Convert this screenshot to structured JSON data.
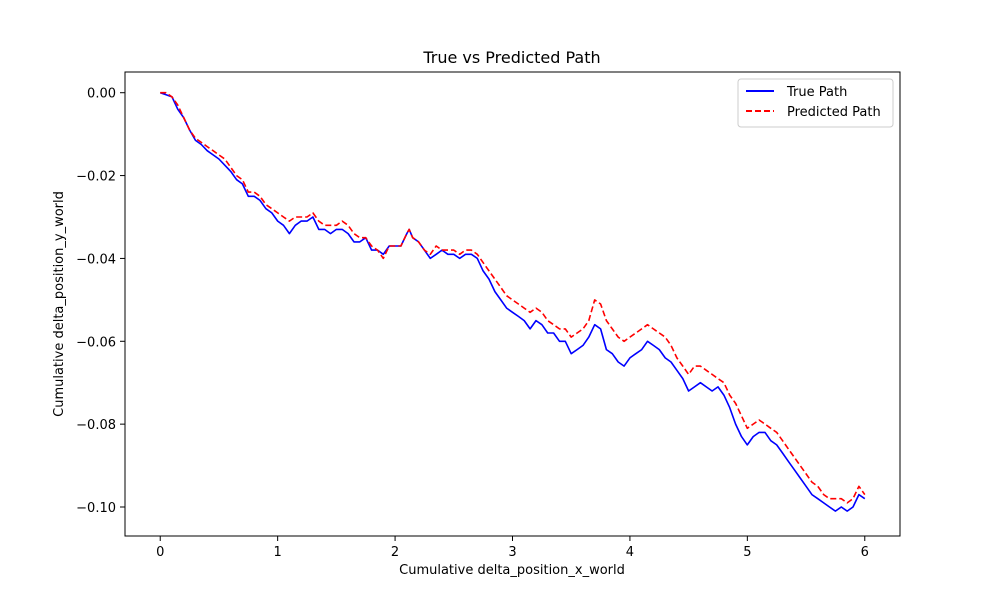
{
  "chart_data": {
    "type": "line",
    "title": "True vs Predicted Path",
    "xlabel": "Cumulative delta_position_x_world",
    "ylabel": "Cumulative delta_position_y_world",
    "xlim": [
      -0.3,
      6.3
    ],
    "ylim": [
      -0.107,
      0.005
    ],
    "x_ticks": [
      0,
      1,
      2,
      3,
      4,
      5,
      6
    ],
    "x_tick_labels": [
      "0",
      "1",
      "2",
      "3",
      "4",
      "5",
      "6"
    ],
    "y_ticks": [
      0.0,
      -0.02,
      -0.04,
      -0.06,
      -0.08,
      -0.1
    ],
    "y_tick_labels": [
      "0.00",
      "−0.02",
      "−0.04",
      "−0.06",
      "−0.08",
      "−0.10"
    ],
    "grid": false,
    "legend_position": "upper-right",
    "series": [
      {
        "name": "True Path",
        "color": "#0000ff",
        "dash": "solid",
        "points": [
          [
            0.0,
            0.0
          ],
          [
            0.05,
            -0.0005
          ],
          [
            0.1,
            -0.001
          ],
          [
            0.15,
            -0.004
          ],
          [
            0.2,
            -0.006
          ],
          [
            0.25,
            -0.009
          ],
          [
            0.3,
            -0.0115
          ],
          [
            0.35,
            -0.0125
          ],
          [
            0.4,
            -0.014
          ],
          [
            0.45,
            -0.015
          ],
          [
            0.5,
            -0.016
          ],
          [
            0.55,
            -0.0175
          ],
          [
            0.6,
            -0.019
          ],
          [
            0.65,
            -0.021
          ],
          [
            0.7,
            -0.022
          ],
          [
            0.75,
            -0.025
          ],
          [
            0.8,
            -0.025
          ],
          [
            0.85,
            -0.026
          ],
          [
            0.9,
            -0.028
          ],
          [
            0.95,
            -0.029
          ],
          [
            1.0,
            -0.031
          ],
          [
            1.05,
            -0.032
          ],
          [
            1.1,
            -0.034
          ],
          [
            1.15,
            -0.032
          ],
          [
            1.2,
            -0.031
          ],
          [
            1.25,
            -0.031
          ],
          [
            1.3,
            -0.03
          ],
          [
            1.35,
            -0.033
          ],
          [
            1.4,
            -0.033
          ],
          [
            1.45,
            -0.034
          ],
          [
            1.5,
            -0.033
          ],
          [
            1.55,
            -0.033
          ],
          [
            1.6,
            -0.034
          ],
          [
            1.65,
            -0.036
          ],
          [
            1.7,
            -0.036
          ],
          [
            1.75,
            -0.035
          ],
          [
            1.8,
            -0.038
          ],
          [
            1.85,
            -0.038
          ],
          [
            1.9,
            -0.039
          ],
          [
            1.95,
            -0.037
          ],
          [
            2.0,
            -0.037
          ],
          [
            2.05,
            -0.037
          ],
          [
            2.1,
            -0.034
          ],
          [
            2.12,
            -0.033
          ],
          [
            2.15,
            -0.035
          ],
          [
            2.2,
            -0.036
          ],
          [
            2.25,
            -0.038
          ],
          [
            2.3,
            -0.04
          ],
          [
            2.35,
            -0.039
          ],
          [
            2.4,
            -0.038
          ],
          [
            2.45,
            -0.039
          ],
          [
            2.5,
            -0.039
          ],
          [
            2.55,
            -0.04
          ],
          [
            2.6,
            -0.039
          ],
          [
            2.65,
            -0.039
          ],
          [
            2.7,
            -0.04
          ],
          [
            2.75,
            -0.043
          ],
          [
            2.8,
            -0.045
          ],
          [
            2.85,
            -0.048
          ],
          [
            2.9,
            -0.05
          ],
          [
            2.95,
            -0.052
          ],
          [
            3.0,
            -0.053
          ],
          [
            3.05,
            -0.054
          ],
          [
            3.1,
            -0.055
          ],
          [
            3.15,
            -0.057
          ],
          [
            3.2,
            -0.055
          ],
          [
            3.25,
            -0.056
          ],
          [
            3.3,
            -0.058
          ],
          [
            3.35,
            -0.058
          ],
          [
            3.4,
            -0.06
          ],
          [
            3.45,
            -0.06
          ],
          [
            3.5,
            -0.063
          ],
          [
            3.55,
            -0.062
          ],
          [
            3.6,
            -0.061
          ],
          [
            3.65,
            -0.059
          ],
          [
            3.7,
            -0.056
          ],
          [
            3.75,
            -0.057
          ],
          [
            3.8,
            -0.062
          ],
          [
            3.85,
            -0.063
          ],
          [
            3.9,
            -0.065
          ],
          [
            3.95,
            -0.066
          ],
          [
            4.0,
            -0.064
          ],
          [
            4.05,
            -0.063
          ],
          [
            4.1,
            -0.062
          ],
          [
            4.15,
            -0.06
          ],
          [
            4.2,
            -0.061
          ],
          [
            4.25,
            -0.062
          ],
          [
            4.3,
            -0.064
          ],
          [
            4.35,
            -0.065
          ],
          [
            4.4,
            -0.067
          ],
          [
            4.45,
            -0.069
          ],
          [
            4.5,
            -0.072
          ],
          [
            4.55,
            -0.071
          ],
          [
            4.6,
            -0.07
          ],
          [
            4.65,
            -0.071
          ],
          [
            4.7,
            -0.072
          ],
          [
            4.75,
            -0.071
          ],
          [
            4.8,
            -0.073
          ],
          [
            4.85,
            -0.076
          ],
          [
            4.9,
            -0.08
          ],
          [
            4.95,
            -0.083
          ],
          [
            5.0,
            -0.085
          ],
          [
            5.05,
            -0.083
          ],
          [
            5.1,
            -0.082
          ],
          [
            5.15,
            -0.082
          ],
          [
            5.2,
            -0.084
          ],
          [
            5.25,
            -0.085
          ],
          [
            5.3,
            -0.087
          ],
          [
            5.35,
            -0.089
          ],
          [
            5.4,
            -0.091
          ],
          [
            5.45,
            -0.093
          ],
          [
            5.5,
            -0.095
          ],
          [
            5.55,
            -0.097
          ],
          [
            5.6,
            -0.098
          ],
          [
            5.65,
            -0.099
          ],
          [
            5.7,
            -0.1
          ],
          [
            5.75,
            -0.101
          ],
          [
            5.8,
            -0.1
          ],
          [
            5.85,
            -0.101
          ],
          [
            5.9,
            -0.1
          ],
          [
            5.95,
            -0.097
          ],
          [
            6.0,
            -0.098
          ]
        ]
      },
      {
        "name": "Predicted Path",
        "color": "#ff0000",
        "dash": "dashed",
        "points": [
          [
            0.0,
            0.0
          ],
          [
            0.05,
            0.0
          ],
          [
            0.1,
            -0.001
          ],
          [
            0.15,
            -0.003
          ],
          [
            0.2,
            -0.006
          ],
          [
            0.25,
            -0.009
          ],
          [
            0.3,
            -0.011
          ],
          [
            0.35,
            -0.012
          ],
          [
            0.4,
            -0.013
          ],
          [
            0.45,
            -0.014
          ],
          [
            0.5,
            -0.015
          ],
          [
            0.55,
            -0.016
          ],
          [
            0.6,
            -0.018
          ],
          [
            0.65,
            -0.02
          ],
          [
            0.7,
            -0.021
          ],
          [
            0.75,
            -0.024
          ],
          [
            0.8,
            -0.024
          ],
          [
            0.85,
            -0.025
          ],
          [
            0.9,
            -0.027
          ],
          [
            0.95,
            -0.028
          ],
          [
            1.0,
            -0.029
          ],
          [
            1.05,
            -0.03
          ],
          [
            1.1,
            -0.031
          ],
          [
            1.15,
            -0.03
          ],
          [
            1.2,
            -0.03
          ],
          [
            1.25,
            -0.03
          ],
          [
            1.3,
            -0.029
          ],
          [
            1.35,
            -0.031
          ],
          [
            1.4,
            -0.032
          ],
          [
            1.45,
            -0.032
          ],
          [
            1.5,
            -0.032
          ],
          [
            1.55,
            -0.031
          ],
          [
            1.6,
            -0.032
          ],
          [
            1.65,
            -0.034
          ],
          [
            1.7,
            -0.035
          ],
          [
            1.75,
            -0.035
          ],
          [
            1.8,
            -0.037
          ],
          [
            1.85,
            -0.038
          ],
          [
            1.9,
            -0.04
          ],
          [
            1.95,
            -0.037
          ],
          [
            2.0,
            -0.037
          ],
          [
            2.05,
            -0.037
          ],
          [
            2.1,
            -0.034
          ],
          [
            2.12,
            -0.033
          ],
          [
            2.15,
            -0.035
          ],
          [
            2.2,
            -0.036
          ],
          [
            2.25,
            -0.038
          ],
          [
            2.3,
            -0.039
          ],
          [
            2.35,
            -0.037
          ],
          [
            2.4,
            -0.038
          ],
          [
            2.45,
            -0.038
          ],
          [
            2.5,
            -0.038
          ],
          [
            2.55,
            -0.039
          ],
          [
            2.6,
            -0.038
          ],
          [
            2.65,
            -0.038
          ],
          [
            2.7,
            -0.039
          ],
          [
            2.75,
            -0.041
          ],
          [
            2.8,
            -0.043
          ],
          [
            2.85,
            -0.045
          ],
          [
            2.9,
            -0.047
          ],
          [
            2.95,
            -0.049
          ],
          [
            3.0,
            -0.05
          ],
          [
            3.05,
            -0.051
          ],
          [
            3.1,
            -0.052
          ],
          [
            3.15,
            -0.053
          ],
          [
            3.2,
            -0.052
          ],
          [
            3.25,
            -0.053
          ],
          [
            3.3,
            -0.055
          ],
          [
            3.35,
            -0.056
          ],
          [
            3.4,
            -0.057
          ],
          [
            3.45,
            -0.057
          ],
          [
            3.5,
            -0.059
          ],
          [
            3.55,
            -0.058
          ],
          [
            3.6,
            -0.057
          ],
          [
            3.65,
            -0.055
          ],
          [
            3.7,
            -0.05
          ],
          [
            3.75,
            -0.051
          ],
          [
            3.8,
            -0.055
          ],
          [
            3.85,
            -0.057
          ],
          [
            3.9,
            -0.059
          ],
          [
            3.95,
            -0.06
          ],
          [
            4.0,
            -0.059
          ],
          [
            4.05,
            -0.058
          ],
          [
            4.1,
            -0.057
          ],
          [
            4.15,
            -0.056
          ],
          [
            4.2,
            -0.057
          ],
          [
            4.25,
            -0.058
          ],
          [
            4.3,
            -0.059
          ],
          [
            4.35,
            -0.061
          ],
          [
            4.4,
            -0.064
          ],
          [
            4.45,
            -0.066
          ],
          [
            4.5,
            -0.068
          ],
          [
            4.55,
            -0.066
          ],
          [
            4.6,
            -0.066
          ],
          [
            4.65,
            -0.067
          ],
          [
            4.7,
            -0.068
          ],
          [
            4.75,
            -0.069
          ],
          [
            4.8,
            -0.07
          ],
          [
            4.85,
            -0.073
          ],
          [
            4.9,
            -0.075
          ],
          [
            4.95,
            -0.078
          ],
          [
            5.0,
            -0.081
          ],
          [
            5.05,
            -0.08
          ],
          [
            5.1,
            -0.079
          ],
          [
            5.15,
            -0.08
          ],
          [
            5.2,
            -0.081
          ],
          [
            5.25,
            -0.082
          ],
          [
            5.3,
            -0.084
          ],
          [
            5.35,
            -0.086
          ],
          [
            5.4,
            -0.088
          ],
          [
            5.45,
            -0.09
          ],
          [
            5.5,
            -0.092
          ],
          [
            5.55,
            -0.094
          ],
          [
            5.6,
            -0.095
          ],
          [
            5.65,
            -0.097
          ],
          [
            5.7,
            -0.098
          ],
          [
            5.75,
            -0.098
          ],
          [
            5.8,
            -0.098
          ],
          [
            5.85,
            -0.099
          ],
          [
            5.9,
            -0.098
          ],
          [
            5.95,
            -0.095
          ],
          [
            6.0,
            -0.097
          ]
        ]
      }
    ]
  }
}
